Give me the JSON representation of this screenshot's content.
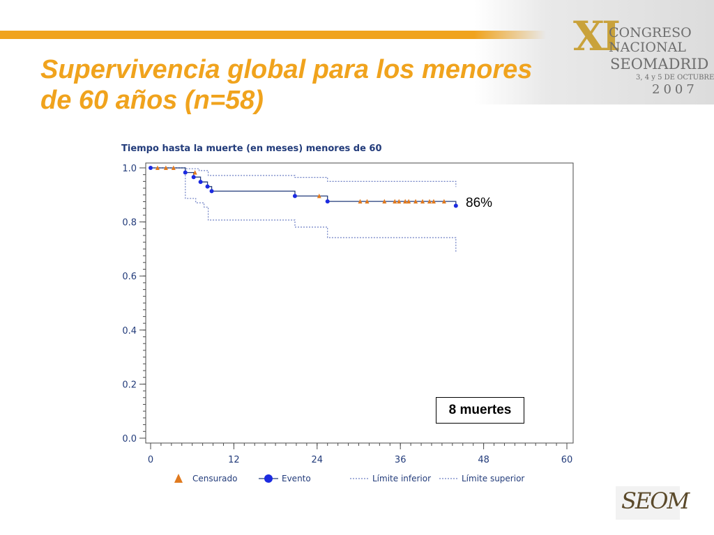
{
  "theme": {
    "accent": "#F0A31D",
    "chart_line": "#223B7A",
    "censored_color": "#E07A1F",
    "event_color": "#1C2BE0"
  },
  "slide": {
    "title_line1": "Supervivencia global para los menores",
    "title_line2": "de 60 años (n=58)"
  },
  "congress_logo": {
    "roman": "XI",
    "line1": "CONGRESO",
    "line2": "NACIONAL",
    "line3": "SEOMADRID",
    "line4": "3, 4 y 5 DE OCTUBRE",
    "line5": "2007"
  },
  "seom_logo": {
    "text": "SEOM"
  },
  "annotations": {
    "pct_label": "86%",
    "deaths_label": "8 muertes"
  },
  "chart_data": {
    "type": "line",
    "title": "Tiempo hasta la muerte (en meses) menores de 60",
    "xlabel": "",
    "ylabel": "",
    "xlim": [
      0,
      60
    ],
    "ylim": [
      0,
      1
    ],
    "xticks": [
      0,
      12,
      24,
      36,
      48,
      60
    ],
    "yticks": [
      0,
      0.2,
      0.4,
      0.6,
      0.8,
      1.0
    ],
    "ytick_labels": [
      "0.0",
      "0.2",
      "0.4",
      "0.6",
      "0.8",
      "1.0"
    ],
    "grid": false,
    "legend_position": "bottom",
    "legend": {
      "censored": "Censurado",
      "event": "Evento",
      "lower": "Límite inferior",
      "upper": "Límite superior"
    },
    "survival": [
      [
        0,
        1.0
      ],
      [
        5,
        1.0
      ],
      [
        5,
        0.983
      ],
      [
        6.2,
        0.983
      ],
      [
        6.2,
        0.966
      ],
      [
        7.2,
        0.966
      ],
      [
        7.2,
        0.948
      ],
      [
        8.2,
        0.948
      ],
      [
        8.2,
        0.931
      ],
      [
        8.8,
        0.931
      ],
      [
        8.8,
        0.914
      ],
      [
        20.8,
        0.914
      ],
      [
        20.8,
        0.896
      ],
      [
        25.5,
        0.896
      ],
      [
        25.5,
        0.876
      ],
      [
        44,
        0.876
      ],
      [
        44,
        0.86
      ]
    ],
    "upper_limit": [
      [
        0,
        1.0
      ],
      [
        5,
        1.0
      ],
      [
        5,
        0.997
      ],
      [
        7,
        0.997
      ],
      [
        7,
        0.99
      ],
      [
        8.3,
        0.99
      ],
      [
        8.3,
        0.972
      ],
      [
        20.8,
        0.972
      ],
      [
        20.8,
        0.965
      ],
      [
        25.5,
        0.965
      ],
      [
        25.5,
        0.95
      ],
      [
        44,
        0.95
      ],
      [
        44,
        0.93
      ]
    ],
    "lower_limit": [
      [
        0,
        1.0
      ],
      [
        5,
        1.0
      ],
      [
        5,
        0.887
      ],
      [
        6.5,
        0.887
      ],
      [
        6.5,
        0.871
      ],
      [
        7.7,
        0.871
      ],
      [
        7.7,
        0.855
      ],
      [
        8.3,
        0.855
      ],
      [
        8.3,
        0.807
      ],
      [
        20.8,
        0.807
      ],
      [
        20.8,
        0.781
      ],
      [
        25.5,
        0.781
      ],
      [
        25.5,
        0.742
      ],
      [
        44,
        0.742
      ],
      [
        44,
        0.69
      ]
    ],
    "events": [
      [
        0,
        1.0
      ],
      [
        5,
        0.983
      ],
      [
        6.2,
        0.966
      ],
      [
        7.2,
        0.948
      ],
      [
        8.2,
        0.931
      ],
      [
        8.8,
        0.914
      ],
      [
        20.8,
        0.896
      ],
      [
        25.5,
        0.876
      ],
      [
        44,
        0.86
      ]
    ],
    "censored": [
      [
        1,
        1.0
      ],
      [
        2.2,
        1.0
      ],
      [
        3.3,
        1.0
      ],
      [
        6.4,
        0.983
      ],
      [
        24.3,
        0.896
      ],
      [
        30.2,
        0.876
      ],
      [
        31.2,
        0.876
      ],
      [
        33.7,
        0.876
      ],
      [
        35.2,
        0.876
      ],
      [
        35.8,
        0.876
      ],
      [
        36.7,
        0.876
      ],
      [
        37.2,
        0.876
      ],
      [
        38.2,
        0.876
      ],
      [
        39.2,
        0.876
      ],
      [
        40.2,
        0.876
      ],
      [
        40.8,
        0.876
      ],
      [
        42.3,
        0.876
      ]
    ]
  }
}
